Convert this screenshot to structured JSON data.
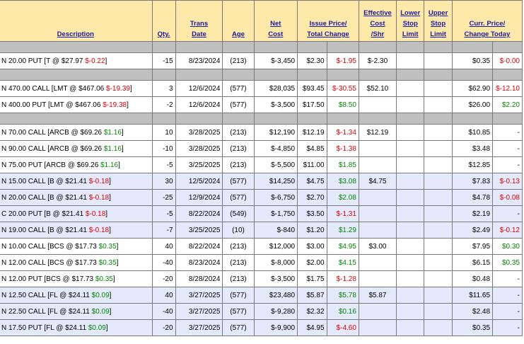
{
  "headers": {
    "description": "Description",
    "qty": "Qty.",
    "trans_date": [
      "Trans",
      "Date"
    ],
    "age": "Age",
    "net_cost": [
      "Net",
      "Cost"
    ],
    "issue_total": [
      "Issue Price/",
      "Total Change"
    ],
    "effective_cost": [
      "Effective",
      "Cost",
      "/Shr"
    ],
    "lower_stop": [
      "Lower",
      "Stop",
      "Limit"
    ],
    "upper_stop": [
      "Upper",
      "Stop",
      "Limit"
    ],
    "curr_change": [
      "Curr. Price/",
      "Change Today"
    ]
  },
  "groups": [
    {
      "rows": [
        {
          "desc": "N 20.00 PUT [T @ $27.97 ",
          "chg": "$-0.22",
          "chg_color": "red",
          "qty": "-15",
          "date": "8/23/2024",
          "age": "(213)",
          "net": "$-3,450",
          "issue": "$2.30",
          "total": "$-1.95",
          "total_color": "red",
          "eff": "$-2.30",
          "curr": "$0.35",
          "today": "$-0.00",
          "today_color": "red",
          "blue": false
        }
      ]
    },
    {
      "rows": [
        {
          "desc": "N 470.00 CALL [LMT @ $467.06 ",
          "chg": "$-19.39",
          "chg_color": "red",
          "qty": "3",
          "date": "12/6/2024",
          "age": "(577)",
          "net": "$28,035",
          "issue": "$93.45",
          "total": "$-30.55",
          "total_color": "red",
          "eff": "$52.10",
          "curr": "$62.90",
          "today": "$-12.10",
          "today_color": "red",
          "blue": false
        },
        {
          "desc": "N 400.00 PUT [LMT @ $467.06 ",
          "chg": "$-19.38",
          "chg_color": "red",
          "qty": "-2",
          "date": "12/6/2024",
          "age": "(577)",
          "net": "$-3,500",
          "issue": "$17.50",
          "total": "$8.50",
          "total_color": "green",
          "eff": "",
          "curr": "$26.00",
          "today": "$2.20",
          "today_color": "green",
          "blue": false
        }
      ]
    },
    {
      "rows": [
        {
          "desc": "N 70.00 CALL [ARCB @ $69.26 ",
          "chg": "$1.16",
          "chg_color": "green",
          "qty": "10",
          "date": "3/28/2025",
          "age": "(213)",
          "net": "$12,190",
          "issue": "$12.19",
          "total": "$-1.34",
          "total_color": "red",
          "eff": "$12.19",
          "curr": "$10.85",
          "today": "-",
          "today_color": "",
          "blue": false
        },
        {
          "desc": "N 90.00 CALL [ARCB @ $69.26 ",
          "chg": "$1.16",
          "chg_color": "green",
          "qty": "-10",
          "date": "3/28/2025",
          "age": "(213)",
          "net": "$-4,850",
          "issue": "$4.85",
          "total": "$-1.38",
          "total_color": "red",
          "eff": "",
          "curr": "$3.48",
          "today": "-",
          "today_color": "",
          "blue": false
        },
        {
          "desc": "N 75.00 PUT [ARCB @ $69.26 ",
          "chg": "$1.16",
          "chg_color": "green",
          "qty": "-5",
          "date": "3/25/2025",
          "age": "(213)",
          "net": "$-5,500",
          "issue": "$11.00",
          "total": "$1.85",
          "total_color": "green",
          "eff": "",
          "curr": "$12.85",
          "today": "-",
          "today_color": "",
          "blue": false
        },
        {
          "desc": "N 15.00 CALL [B @ $21.41 ",
          "chg": "$-0.18",
          "chg_color": "red",
          "qty": "30",
          "date": "12/5/2024",
          "age": "(577)",
          "net": "$14,250",
          "issue": "$4.75",
          "total": "$3.08",
          "total_color": "green",
          "eff": "$4.75",
          "curr": "$7.83",
          "today": "$-0.13",
          "today_color": "red",
          "blue": true
        },
        {
          "desc": "N 20.00 CALL [B @ $21.41 ",
          "chg": "$-0.18",
          "chg_color": "red",
          "qty": "-25",
          "date": "12/9/2024",
          "age": "(577)",
          "net": "$-6,750",
          "issue": "$2.70",
          "total": "$2.08",
          "total_color": "green",
          "eff": "",
          "curr": "$4.78",
          "today": "$-0.08",
          "today_color": "red",
          "blue": true
        },
        {
          "desc": "C 20.00 PUT [B @ $21.41 ",
          "chg": "$-0.18",
          "chg_color": "red",
          "qty": "-5",
          "date": "8/22/2024",
          "age": "(549)",
          "net": "$-1,750",
          "issue": "$3.50",
          "total": "$-1.31",
          "total_color": "red",
          "eff": "",
          "curr": "$2.19",
          "today": "-",
          "today_color": "",
          "blue": true
        },
        {
          "desc": "N 19.00 CALL [B @ $21.41 ",
          "chg": "$-0.18",
          "chg_color": "red",
          "qty": "-7",
          "date": "3/25/2025",
          "age": "(10)",
          "net": "$-840",
          "issue": "$1.20",
          "total": "$1.29",
          "total_color": "green",
          "eff": "",
          "curr": "$2.49",
          "today": "$-0.12",
          "today_color": "red",
          "blue": true
        },
        {
          "desc": "N 10.00 CALL [BCS @ $17.73 ",
          "chg": "$0.35",
          "chg_color": "green",
          "qty": "40",
          "date": "8/22/2024",
          "age": "(213)",
          "net": "$12,000",
          "issue": "$3.00",
          "total": "$4.95",
          "total_color": "green",
          "eff": "$3.00",
          "curr": "$7.95",
          "today": "$0.30",
          "today_color": "green",
          "blue": false
        },
        {
          "desc": "N 12.00 CALL [BCS @ $17.73 ",
          "chg": "$0.35",
          "chg_color": "green",
          "qty": "-40",
          "date": "8/23/2024",
          "age": "(213)",
          "net": "$-8,000",
          "issue": "$2.00",
          "total": "$4.15",
          "total_color": "green",
          "eff": "",
          "curr": "$6.15",
          "today": "$0.35",
          "today_color": "green",
          "blue": false
        },
        {
          "desc": "N 12.00 PUT [BCS @ $17.73 ",
          "chg": "$0.35",
          "chg_color": "green",
          "qty": "-20",
          "date": "8/28/2024",
          "age": "(213)",
          "net": "$-3,500",
          "issue": "$1.75",
          "total": "$-1.28",
          "total_color": "red",
          "eff": "",
          "curr": "$0.48",
          "today": "-",
          "today_color": "",
          "blue": false
        },
        {
          "desc": "N 12.50 CALL [FL @ $24.11 ",
          "chg": "$0.09",
          "chg_color": "green",
          "qty": "40",
          "date": "3/27/2025",
          "age": "(577)",
          "net": "$23,480",
          "issue": "$5.87",
          "total": "$5.78",
          "total_color": "green",
          "eff": "$5.87",
          "curr": "$11.65",
          "today": "-",
          "today_color": "",
          "blue": true
        },
        {
          "desc": "N 22.50 CALL [FL @ $24.11 ",
          "chg": "$0.09",
          "chg_color": "green",
          "qty": "-40",
          "date": "3/27/2025",
          "age": "(577)",
          "net": "$-9,280",
          "issue": "$2.32",
          "total": "$0.16",
          "total_color": "green",
          "eff": "",
          "curr": "$2.48",
          "today": "-",
          "today_color": "",
          "blue": true
        },
        {
          "desc": "N 17.50 PUT [FL @ $24.11 ",
          "chg": "$0.09",
          "chg_color": "green",
          "qty": "-20",
          "date": "3/27/2025",
          "age": "(577)",
          "net": "$-9,900",
          "issue": "$4.95",
          "total": "$-4.60",
          "total_color": "red",
          "eff": "",
          "curr": "$0.35",
          "today": "-",
          "today_color": "",
          "blue": true
        }
      ]
    }
  ]
}
